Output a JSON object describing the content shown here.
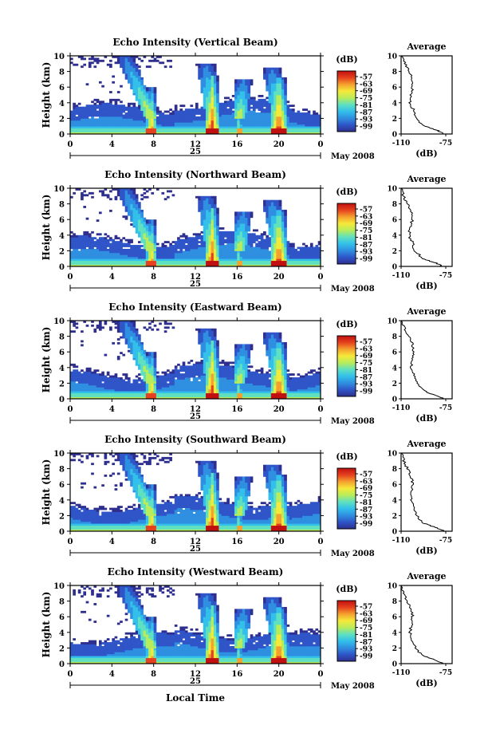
{
  "colorbar": {
    "unit_label": "(dB)",
    "ticks": [
      "-57",
      "-63",
      "-69",
      "-75",
      "-81",
      "-87",
      "-93",
      "-99"
    ],
    "colors": [
      "#2e2f8f",
      "#2f55c8",
      "#2f8fe0",
      "#33c0ea",
      "#5fe0c0",
      "#b8ec5a",
      "#f5e93a",
      "#f5a12e",
      "#e5411e",
      "#c01010"
    ]
  },
  "x_axis": {
    "ticks": [
      "0",
      "4",
      "8",
      "12",
      "16",
      "20",
      "0"
    ],
    "day_label": "25",
    "month_label": "May 2008",
    "bottom_label": "Local Time"
  },
  "avg_axis": {
    "title": "Average",
    "ticks": [
      "-110",
      "-75"
    ],
    "unit_label": "(dB)"
  },
  "y_axis": {
    "label": "Height (km)",
    "ticks": [
      "0",
      "2",
      "4",
      "6",
      "8",
      "10"
    ]
  },
  "chart_data": [
    {
      "type": "heatmap",
      "title": "Echo Intensity (Vertical Beam)",
      "xlabel": "",
      "ylabel": "Height (km)",
      "xlim": [
        0,
        24
      ],
      "ylim": [
        0,
        10
      ],
      "color_range_db": [
        -99,
        -57
      ],
      "rain_events_local_time_h": [
        7.8,
        13.6,
        16.2,
        20.0
      ],
      "average_profile": {
        "height_km": [
          0,
          0.5,
          1,
          2,
          3,
          4,
          5,
          6,
          7,
          8,
          9,
          10
        ],
        "db": [
          -76,
          -82,
          -92,
          -98,
          -100,
          -103,
          -102,
          -101,
          -101,
          -104,
          -107,
          -110
        ]
      }
    },
    {
      "type": "heatmap",
      "title": "Echo Intensity (Northward Beam)",
      "xlabel": "",
      "ylabel": "Height (km)",
      "xlim": [
        0,
        24
      ],
      "ylim": [
        0,
        10
      ],
      "color_range_db": [
        -99,
        -57
      ],
      "rain_events_local_time_h": [
        7.8,
        13.6,
        16.2,
        20.0
      ],
      "average_profile": {
        "height_km": [
          0,
          0.5,
          1,
          2,
          3,
          4,
          5,
          6,
          7,
          8,
          9,
          10
        ],
        "db": [
          -77,
          -84,
          -93,
          -99,
          -101,
          -104,
          -103,
          -101,
          -102,
          -105,
          -108,
          -110
        ]
      }
    },
    {
      "type": "heatmap",
      "title": "Echo Intensity (Eastward Beam)",
      "xlabel": "",
      "ylabel": "Height (km)",
      "xlim": [
        0,
        24
      ],
      "ylim": [
        0,
        10
      ],
      "color_range_db": [
        -99,
        -57
      ],
      "rain_events_local_time_h": [
        7.8,
        13.6,
        16.2,
        20.0
      ],
      "average_profile": {
        "height_km": [
          0,
          0.5,
          1,
          2,
          3,
          4,
          5,
          6,
          7,
          8,
          9,
          10
        ],
        "db": [
          -76,
          -84,
          -92,
          -98,
          -100,
          -102,
          -101,
          -100,
          -101,
          -104,
          -107,
          -110
        ]
      }
    },
    {
      "type": "heatmap",
      "title": "Echo Intensity (Southward Beam)",
      "xlabel": "",
      "ylabel": "Height (km)",
      "xlim": [
        0,
        24
      ],
      "ylim": [
        0,
        10
      ],
      "color_range_db": [
        -99,
        -57
      ],
      "rain_events_local_time_h": [
        7.8,
        13.6,
        16.2,
        20.0
      ],
      "average_profile": {
        "height_km": [
          0,
          0.5,
          1,
          2,
          3,
          4,
          5,
          6,
          7,
          8,
          9,
          10
        ],
        "db": [
          -76,
          -83,
          -92,
          -98,
          -100,
          -102,
          -102,
          -101,
          -102,
          -105,
          -108,
          -110
        ]
      }
    },
    {
      "type": "heatmap",
      "title": "Echo Intensity (Westward Beam)",
      "xlabel": "Local Time",
      "ylabel": "Height (km)",
      "xlim": [
        0,
        24
      ],
      "ylim": [
        0,
        10
      ],
      "color_range_db": [
        -99,
        -57
      ],
      "rain_events_local_time_h": [
        7.8,
        13.6,
        16.2,
        20.0
      ],
      "average_profile": {
        "height_km": [
          0,
          0.5,
          1,
          2,
          3,
          4,
          5,
          6,
          7,
          8,
          9,
          10
        ],
        "db": [
          -77,
          -84,
          -93,
          -99,
          -101,
          -103,
          -102,
          -101,
          -102,
          -105,
          -108,
          -110
        ]
      }
    }
  ]
}
